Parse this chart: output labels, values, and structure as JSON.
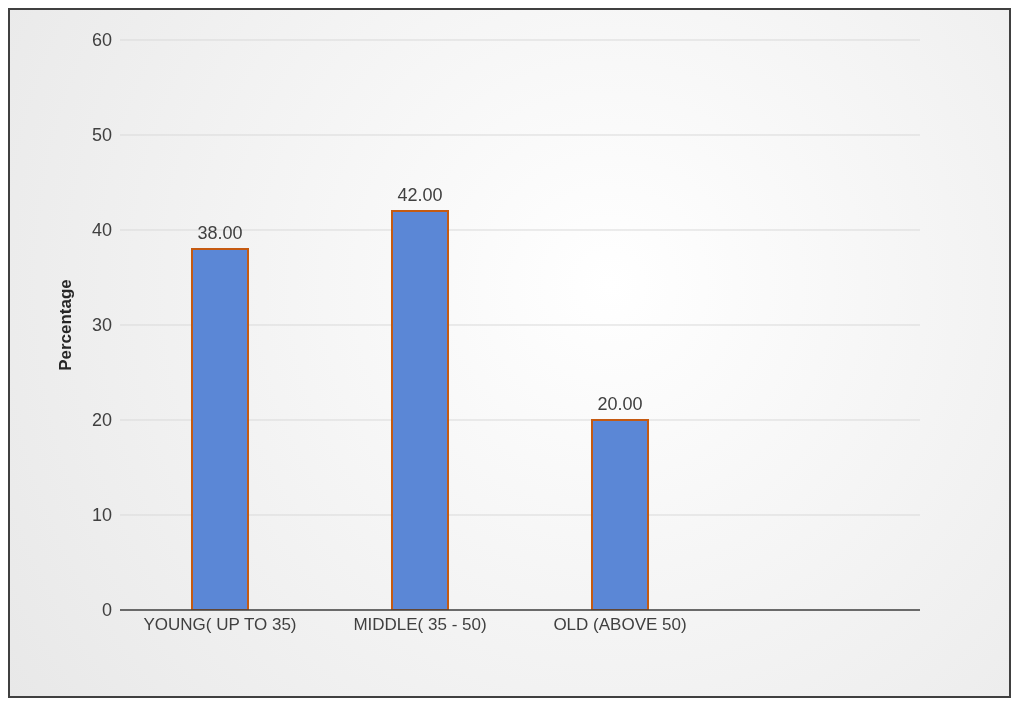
{
  "chart_data": {
    "type": "bar",
    "ylabel": "Percentage",
    "categories": [
      "YOUNG( UP TO 35)",
      "MIDDLE( 35 - 50)",
      "OLD (ABOVE 50)",
      null
    ],
    "values": [
      38,
      42,
      20,
      null
    ],
    "value_labels": [
      "38.00",
      "42.00",
      "20.00",
      null
    ],
    "color": "#5b87d6",
    "ylim": [
      0,
      60
    ],
    "yticks": [
      0,
      10,
      20,
      30,
      40,
      50,
      60
    ],
    "grid": "y",
    "legend": false
  }
}
